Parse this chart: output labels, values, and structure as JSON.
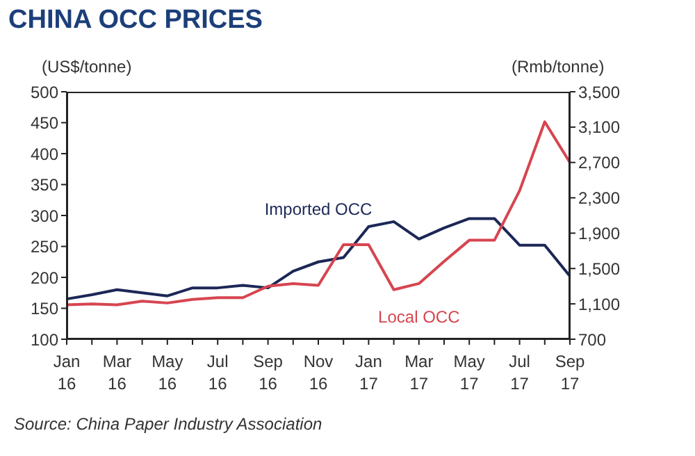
{
  "chart_data": {
    "type": "line",
    "title": "CHINA OCC PRICES",
    "ylabel": "(US$/tonne)",
    "y2label": "(Rmb/tonne)",
    "categories": [
      "Jan 16",
      null,
      "Mar 16",
      null,
      "May 16",
      null,
      "Jul 16",
      null,
      "Sep 16",
      null,
      "Nov 16",
      null,
      "Jan 17",
      null,
      "Mar 17",
      null,
      "May 17",
      null,
      "Jul 17",
      null,
      "Sep 17"
    ],
    "series": [
      {
        "name": "Imported OCC",
        "color": "#1c2757",
        "values": [
          165,
          172,
          180,
          175,
          170,
          183,
          183,
          187,
          183,
          210,
          225,
          232,
          282,
          290,
          262,
          280,
          295,
          295,
          252,
          252,
          202
        ]
      },
      {
        "name": "Local OCC",
        "color": "#d64550",
        "axis": "y2",
        "values": [
          1090,
          1100,
          1090,
          1130,
          1110,
          1150,
          1170,
          1170,
          1300,
          1330,
          1310,
          1770,
          1770,
          1260,
          1330,
          1580,
          1820,
          1820,
          2380,
          3160,
          2700
        ]
      }
    ],
    "ylim": [
      100,
      500
    ],
    "yticks": [
      100,
      150,
      200,
      250,
      300,
      350,
      400,
      450,
      500
    ],
    "y2lim": [
      700,
      3500
    ],
    "y2ticks": [
      {
        "value": 700,
        "label": "700"
      },
      {
        "value": 1100,
        "label": "1,100"
      },
      {
        "value": 1500,
        "label": "1,500"
      },
      {
        "value": 1900,
        "label": "1,900"
      },
      {
        "value": 2300,
        "label": "2,300"
      },
      {
        "value": 2700,
        "label": "2,700"
      },
      {
        "value": 3100,
        "label": "3,100"
      },
      {
        "value": 3500,
        "label": "3,500"
      }
    ],
    "grid": false,
    "marker": "none",
    "line_style": "solid",
    "annotations": [
      "Source: China Paper Industry Association"
    ]
  }
}
